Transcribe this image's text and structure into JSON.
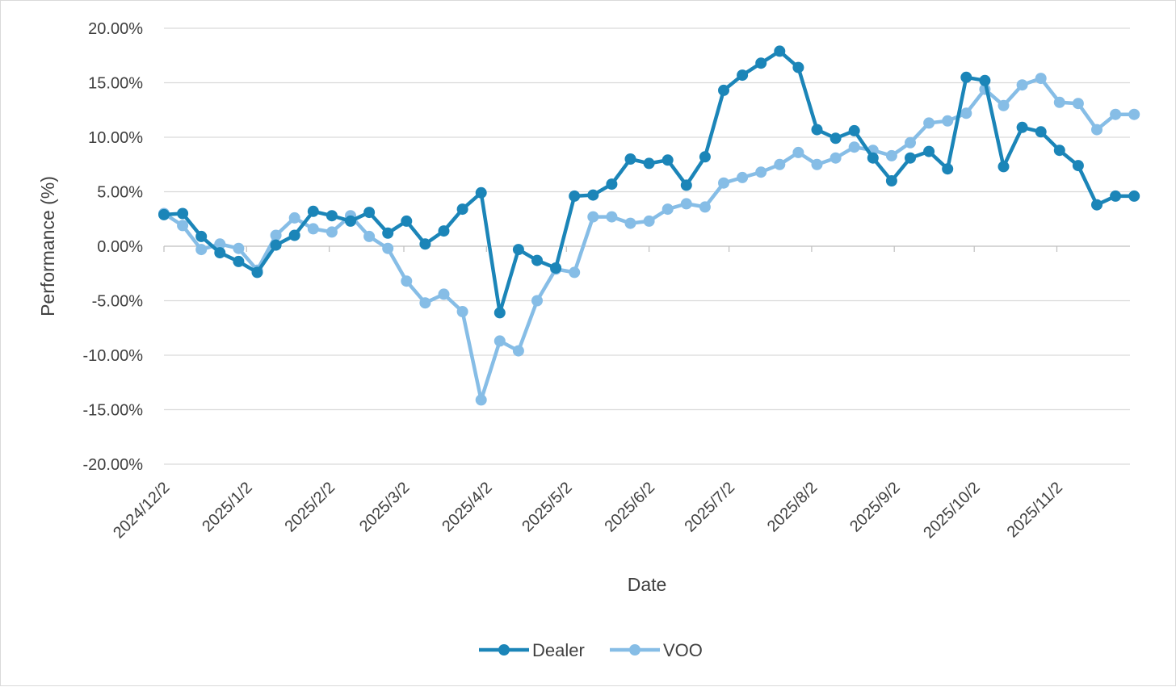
{
  "chart_data": {
    "type": "line",
    "title": "",
    "xlabel": "Date",
    "ylabel": "Performance (%)",
    "ylim": [
      -20,
      20
    ],
    "y_ticks": [
      "-20.00%",
      "-15.00%",
      "-10.00%",
      "-5.00%",
      "0.00%",
      "5.00%",
      "10.00%",
      "15.00%",
      "20.00%"
    ],
    "x_ticks": [
      "2024/12/2",
      "2025/1/2",
      "2025/2/2",
      "2025/3/2",
      "2025/4/2",
      "2025/5/2",
      "2025/6/2",
      "2025/7/2",
      "2025/8/2",
      "2025/9/2",
      "2025/10/2",
      "2025/11/2"
    ],
    "x": [
      "2024/12/2",
      "2024/12/9",
      "2024/12/16",
      "2024/12/23",
      "2024/12/30",
      "2025/1/6",
      "2025/1/13",
      "2025/1/20",
      "2025/1/27",
      "2025/2/3",
      "2025/2/10",
      "2025/2/17",
      "2025/2/24",
      "2025/3/3",
      "2025/3/10",
      "2025/3/17",
      "2025/3/24",
      "2025/3/31",
      "2025/4/7",
      "2025/4/14",
      "2025/4/21",
      "2025/4/28",
      "2025/5/5",
      "2025/5/12",
      "2025/5/19",
      "2025/5/26",
      "2025/6/2",
      "2025/6/9",
      "2025/6/16",
      "2025/6/23",
      "2025/6/30",
      "2025/7/7",
      "2025/7/14",
      "2025/7/21",
      "2025/7/28",
      "2025/8/4",
      "2025/8/11",
      "2025/8/18",
      "2025/8/25",
      "2025/9/1",
      "2025/9/8",
      "2025/9/15",
      "2025/9/22",
      "2025/9/29",
      "2025/10/6",
      "2025/10/13",
      "2025/10/20",
      "2025/10/27",
      "2025/11/3",
      "2025/11/10",
      "2025/11/17",
      "2025/11/24",
      "2025/12/1"
    ],
    "grid": true,
    "legend_position": "bottom",
    "series": [
      {
        "name": "Dealer",
        "color": "#1b85b8",
        "values": [
          2.9,
          3.0,
          0.9,
          -0.6,
          -1.4,
          -2.4,
          0.1,
          1.0,
          3.2,
          2.8,
          2.3,
          3.1,
          1.2,
          2.3,
          0.2,
          1.4,
          3.4,
          4.9,
          -6.1,
          -0.3,
          -1.3,
          -2.0,
          4.6,
          4.7,
          5.7,
          8.0,
          7.6,
          7.9,
          5.6,
          8.2,
          14.3,
          15.7,
          16.8,
          17.9,
          16.4,
          10.7,
          9.9,
          10.6,
          8.1,
          6.0,
          8.1,
          8.7,
          7.1,
          15.5,
          15.2,
          7.3,
          10.9,
          10.5,
          8.8,
          7.4,
          3.8,
          4.6,
          4.6
        ]
      },
      {
        "name": "VOO",
        "color": "#86bde6",
        "values": [
          3.0,
          1.9,
          -0.3,
          0.2,
          -0.2,
          -2.2,
          1.0,
          2.6,
          1.6,
          1.3,
          2.8,
          0.9,
          -0.2,
          -3.2,
          -5.2,
          -4.4,
          -6.0,
          -14.1,
          -8.7,
          -9.6,
          -5.0,
          -2.1,
          -2.4,
          2.7,
          2.7,
          2.1,
          2.3,
          3.4,
          3.9,
          3.6,
          5.8,
          6.3,
          6.8,
          7.5,
          8.6,
          7.5,
          8.1,
          9.1,
          8.8,
          8.3,
          9.5,
          11.3,
          11.5,
          12.2,
          14.4,
          12.9,
          14.8,
          15.4,
          13.2,
          13.1,
          10.7,
          12.1,
          12.1
        ]
      }
    ]
  }
}
